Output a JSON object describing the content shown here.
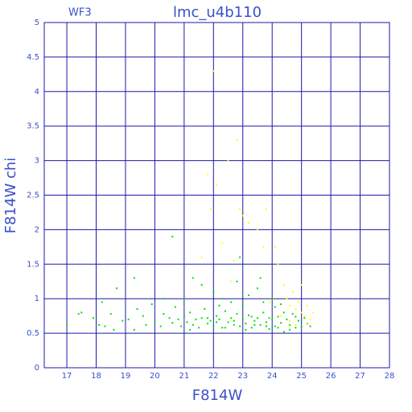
{
  "chart_data": {
    "type": "scatter",
    "title": "lmc_u4b110",
    "annotation": "WF3",
    "x_label": "F814W",
    "y_label": "F814W chi",
    "xlim": [
      16.23,
      28
    ],
    "ylim": [
      0,
      5
    ],
    "xticks": [
      17,
      18,
      19,
      20,
      21,
      22,
      23,
      24,
      25,
      26,
      27,
      28
    ],
    "yticks": [
      0,
      0.5,
      1,
      1.5,
      2,
      2.5,
      3,
      3.5,
      4,
      4.5,
      5
    ],
    "grid": true,
    "series": [
      {
        "color": "#00e000",
        "x": [
          17.0,
          17.4,
          17.5,
          17.9,
          18.1,
          18.2,
          18.3,
          18.5,
          18.6,
          18.7,
          18.9,
          19.1,
          19.3,
          19.4,
          19.6,
          19.7,
          19.9,
          20.0,
          20.2,
          20.3,
          20.5,
          20.6,
          20.7,
          20.8,
          20.9,
          21.0,
          21.1,
          21.2,
          21.3,
          21.4,
          21.5,
          21.6,
          21.7,
          21.8,
          21.9,
          22.0,
          22.1,
          22.2,
          22.3,
          22.4,
          22.5,
          22.6,
          22.7,
          22.8,
          22.9,
          23.0,
          23.1,
          23.2,
          23.3,
          23.4,
          23.5,
          23.6,
          23.7,
          23.8,
          23.9,
          24.0,
          24.1,
          24.2,
          24.3,
          24.4,
          24.5,
          24.6,
          24.7,
          24.8,
          24.9,
          25.0,
          25.1,
          25.2,
          25.3,
          21.3,
          21.6,
          22.0,
          22.3,
          22.6,
          22.8,
          22.9,
          23.2,
          23.5,
          23.7,
          24.0,
          24.3,
          20.6,
          19.3,
          20.3,
          21.0,
          22.2,
          23.0,
          23.6,
          24.1,
          22.4,
          22.7,
          23.3,
          23.8,
          24.4,
          24.6,
          21.2,
          21.8,
          23.1,
          24.8,
          22.1,
          23.4,
          23.9,
          24.2
        ],
        "values": [
          0.62,
          0.78,
          0.8,
          0.72,
          0.62,
          0.95,
          0.6,
          0.78,
          0.55,
          1.15,
          0.68,
          0.7,
          0.55,
          0.85,
          0.75,
          0.62,
          0.92,
          0.68,
          0.6,
          0.78,
          0.72,
          0.65,
          0.88,
          0.7,
          0.6,
          0.75,
          0.66,
          0.8,
          0.62,
          0.7,
          0.58,
          0.72,
          0.85,
          0.64,
          0.68,
          0.6,
          0.75,
          0.7,
          0.58,
          0.82,
          0.66,
          0.72,
          0.62,
          0.78,
          0.6,
          0.7,
          0.64,
          0.76,
          0.58,
          0.68,
          0.72,
          0.62,
          0.8,
          0.66,
          0.56,
          0.7,
          0.6,
          0.74,
          0.65,
          0.52,
          0.7,
          0.62,
          0.78,
          0.58,
          0.68,
          0.6,
          0.72,
          0.64,
          0.6,
          1.3,
          1.2,
          1.1,
          1.0,
          0.95,
          1.25,
          1.6,
          1.05,
          1.15,
          0.95,
          1.0,
          0.92,
          1.9,
          1.3,
          1.0,
          1.0,
          0.9,
          0.92,
          1.3,
          0.88,
          0.58,
          0.68,
          0.74,
          0.6,
          0.8,
          0.55,
          0.55,
          0.72,
          0.55,
          0.74,
          0.66,
          0.62,
          0.72,
          0.58
        ]
      },
      {
        "color": "#ffff00",
        "x": [
          21.8,
          22.0,
          22.1,
          21.9,
          22.5,
          22.8,
          22.9,
          23.0,
          23.2,
          23.5,
          23.7,
          23.8,
          22.3,
          22.7,
          24.2,
          24.4,
          24.5,
          24.6,
          24.7,
          24.8,
          24.9,
          25.0,
          25.1,
          25.2,
          25.3,
          25.4,
          24.3,
          24.6,
          25.0,
          24.1,
          23.9,
          25.2,
          24.8,
          21.6,
          22.6
        ],
        "values": [
          2.8,
          4.3,
          2.65,
          2.3,
          3.0,
          3.3,
          2.3,
          2.2,
          2.1,
          2.0,
          1.75,
          2.3,
          1.8,
          1.55,
          1.5,
          1.2,
          1.0,
          0.9,
          1.1,
          0.85,
          0.95,
          0.8,
          0.75,
          0.9,
          0.7,
          0.8,
          0.75,
          0.68,
          1.2,
          1.75,
          0.95,
          0.65,
          0.62,
          1.6,
          1.25
        ]
      }
    ]
  }
}
